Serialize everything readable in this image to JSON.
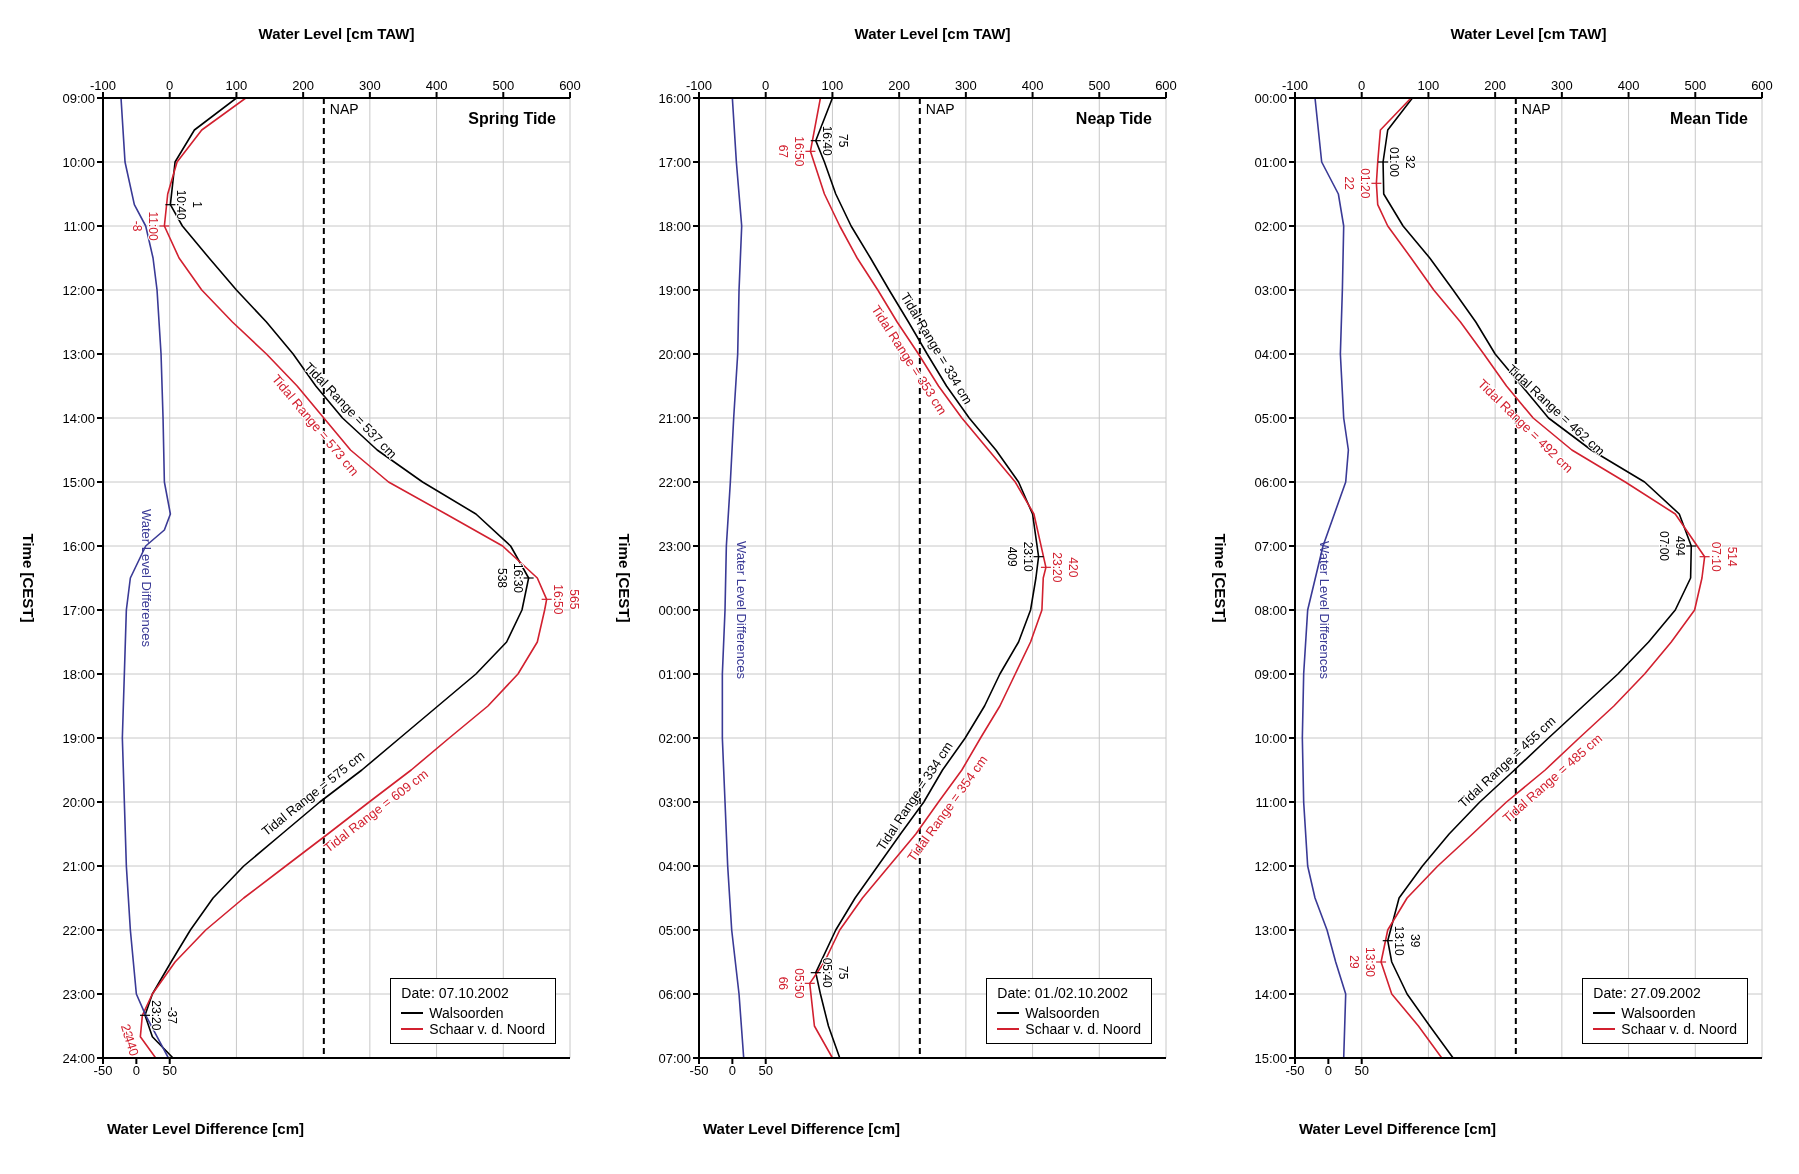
{
  "chart_data": [
    {
      "type": "line",
      "title": "Spring Tide",
      "orientation": "horizontal",
      "xlabel": "Water Level [cm TAW]",
      "ylabel": "Time [CEST]",
      "x2label": "Water Level Difference [cm]",
      "legend_title": "Date: 07.10.2002",
      "legend": "bottom right",
      "grid": true,
      "xlim": [
        -100,
        600
      ],
      "xticks": [
        -100,
        0,
        100,
        200,
        300,
        400,
        500,
        600
      ],
      "x2lim": [
        -50,
        650
      ],
      "x2ticks": [
        -50,
        0,
        50
      ],
      "ylim": [
        24,
        9
      ],
      "yticks": [
        {
          "value": 9,
          "label": "09:00"
        },
        {
          "value": 10,
          "label": "10:00"
        },
        {
          "value": 11,
          "label": "11:00"
        },
        {
          "value": 12,
          "label": "12:00"
        },
        {
          "value": 13,
          "label": "13:00"
        },
        {
          "value": 14,
          "label": "14:00"
        },
        {
          "value": 15,
          "label": "15:00"
        },
        {
          "value": 16,
          "label": "16:00"
        },
        {
          "value": 17,
          "label": "17:00"
        },
        {
          "value": 18,
          "label": "18:00"
        },
        {
          "value": 19,
          "label": "19:00"
        },
        {
          "value": 20,
          "label": "20:00"
        },
        {
          "value": 21,
          "label": "21:00"
        },
        {
          "value": 22,
          "label": "22:00"
        },
        {
          "value": 23,
          "label": "23:00"
        },
        {
          "value": 24,
          "label": "24:00"
        }
      ],
      "series": [
        {
          "name": "Walsoorden",
          "color": "#000000",
          "x": [
            9,
            9.5,
            10,
            10.667,
            11,
            11.5,
            12,
            12.5,
            13,
            13.5,
            14,
            14.5,
            15,
            15.5,
            16,
            16.5,
            17,
            17.5,
            18,
            18.5,
            19,
            19.5,
            20,
            20.5,
            21,
            21.5,
            22,
            22.5,
            23,
            23.333,
            23.667,
            24
          ],
          "values": [
            100,
            37,
            8,
            1,
            19,
            59,
            100,
            145,
            185,
            219,
            259,
            311,
            379,
            459,
            511,
            538,
            528,
            505,
            459,
            402,
            345,
            288,
            225,
            168,
            111,
            65,
            31,
            2,
            -26,
            -37,
            -26,
            5
          ]
        },
        {
          "name": "Schaar v. d. Noord",
          "color": "#d2202f",
          "x": [
            9,
            9.5,
            10,
            10.5,
            11,
            11.5,
            12,
            12.5,
            13,
            13.5,
            14,
            14.5,
            15,
            15.5,
            16,
            16.5,
            16.833,
            17,
            17.5,
            18,
            18.5,
            19,
            19.5,
            20,
            20.5,
            21,
            21.5,
            22,
            22.5,
            23,
            23.333,
            23.667,
            24
          ],
          "values": [
            114,
            48,
            11,
            -3,
            -8,
            14,
            48,
            94,
            145,
            191,
            231,
            271,
            328,
            414,
            499,
            551,
            565,
            562,
            551,
            522,
            477,
            419,
            362,
            299,
            237,
            174,
            111,
            54,
            8,
            -26,
            -41,
            -44,
            -21
          ]
        },
        {
          "name": "Water Level Differences",
          "color": "#3a3a96",
          "axis": "x2",
          "x": [
            9,
            10,
            10.667,
            11,
            11.5,
            12,
            13,
            14,
            15,
            15.5,
            15.75,
            16,
            16.5,
            17,
            18,
            19,
            20,
            21,
            22,
            23,
            23.333,
            23.667,
            24
          ],
          "values": [
            -23,
            -17,
            -3,
            14,
            25,
            31,
            37,
            40,
            42,
            51,
            42,
            14,
            -9,
            -15,
            -18,
            -21,
            -18,
            -15,
            -9,
            0,
            14,
            31,
            48
          ]
        }
      ],
      "ref_lines": [
        {
          "axis": "x",
          "value": 231,
          "label": "NAP",
          "line_style": "dashed"
        }
      ],
      "annotations": [
        {
          "text": "10:40",
          "x": 1,
          "y": 10.667
        },
        {
          "text": "1",
          "x": 1,
          "y": 10.667
        },
        {
          "text": "11:00",
          "x": -8,
          "y": 11
        },
        {
          "text": "-8",
          "x": -8,
          "y": 11
        },
        {
          "text": "16:30",
          "x": 538,
          "y": 16.5
        },
        {
          "text": "538",
          "x": 538,
          "y": 16.5
        },
        {
          "text": "16:50",
          "x": 565,
          "y": 16.833
        },
        {
          "text": "565",
          "x": 565,
          "y": 16.833
        },
        {
          "text": "23:20",
          "x": -37,
          "y": 23.333
        },
        {
          "text": "-37",
          "x": -37,
          "y": 23.333
        },
        {
          "text": "23:40",
          "x": -44,
          "y": 23.667
        },
        {
          "text": "-44",
          "x": -44,
          "y": 23.667
        },
        {
          "text": "Tidal Range = 537 cm",
          "x": 259,
          "y": 14
        },
        {
          "text": "Tidal Range = 573 cm",
          "x": 231,
          "y": 14
        },
        {
          "text": "Tidal Range = 575 cm",
          "x": 225,
          "y": 20
        },
        {
          "text": "Tidal Range = 609 cm",
          "x": 299,
          "y": 20
        }
      ]
    },
    {
      "type": "line",
      "title": "Neap Tide",
      "orientation": "horizontal",
      "xlabel": "Water Level [cm TAW]",
      "ylabel": "Time [CEST]",
      "x2label": "Water Level Difference [cm]",
      "legend_title": "Date: 01./02.10.2002",
      "legend": "bottom right",
      "grid": true,
      "xlim": [
        -100,
        600
      ],
      "xticks": [
        -100,
        0,
        100,
        200,
        300,
        400,
        500,
        600
      ],
      "x2lim": [
        -50,
        650
      ],
      "x2ticks": [
        -50,
        0,
        50
      ],
      "ylim": [
        "2002-10-02T07:00",
        "2002-10-01T16:00"
      ],
      "yticks": [
        {
          "value": "2002-10-01T16:00",
          "label": "16:00"
        },
        {
          "value": "2002-10-01T17:00",
          "label": "17:00"
        },
        {
          "value": "2002-10-01T18:00",
          "label": "18:00"
        },
        {
          "value": "2002-10-01T19:00",
          "label": "19:00"
        },
        {
          "value": "2002-10-01T20:00",
          "label": "20:00"
        },
        {
          "value": "2002-10-01T21:00",
          "label": "21:00"
        },
        {
          "value": "2002-10-01T22:00",
          "label": "22:00"
        },
        {
          "value": "2002-10-01T23:00",
          "label": "23:00"
        },
        {
          "value": "2002-10-02T00:00",
          "label": "00:00"
        },
        {
          "value": "2002-10-02T01:00",
          "label": "01:00"
        },
        {
          "value": "2002-10-02T02:00",
          "label": "02:00"
        },
        {
          "value": "2002-10-02T03:00",
          "label": "03:00"
        },
        {
          "value": "2002-10-02T04:00",
          "label": "04:00"
        },
        {
          "value": "2002-10-02T05:00",
          "label": "05:00"
        },
        {
          "value": "2002-10-02T06:00",
          "label": "06:00"
        },
        {
          "value": "2002-10-02T07:00",
          "label": "07:00"
        }
      ],
      "series": [
        {
          "name": "Walsoorden",
          "color": "#000000",
          "x": [
            "2002-10-01T16:00",
            "2002-10-01T16:40",
            "2002-10-01T17:00",
            "2002-10-01T17:30",
            "2002-10-01T18:00",
            "2002-10-01T18:30",
            "2002-10-01T19:00",
            "2002-10-01T19:30",
            "2002-10-01T20:00",
            "2002-10-01T20:30",
            "2002-10-01T21:00",
            "2002-10-01T21:30",
            "2002-10-01T22:00",
            "2002-10-01T22:30",
            "2002-10-01T23:10",
            "2002-10-01T23:30",
            "2002-10-02T00:00",
            "2002-10-02T00:30",
            "2002-10-02T01:00",
            "2002-10-02T01:30",
            "2002-10-02T02:00",
            "2002-10-02T02:30",
            "2002-10-02T03:00",
            "2002-10-02T03:30",
            "2002-10-02T04:00",
            "2002-10-02T04:30",
            "2002-10-02T05:00",
            "2002-10-02T05:40",
            "2002-10-02T06:00",
            "2002-10-02T06:30",
            "2002-10-02T07:00"
          ],
          "values": [
            100,
            75,
            88,
            105,
            128,
            157,
            185,
            214,
            242,
            271,
            305,
            345,
            379,
            400,
            409,
            405,
            397,
            379,
            351,
            328,
            299,
            265,
            237,
            202,
            168,
            134,
            105,
            75,
            82,
            94,
            111
          ]
        },
        {
          "name": "Schaar v. d. Noord",
          "color": "#d2202f",
          "x": [
            "2002-10-01T16:00",
            "2002-10-01T16:50",
            "2002-10-01T17:30",
            "2002-10-01T18:00",
            "2002-10-01T18:30",
            "2002-10-01T19:00",
            "2002-10-01T19:30",
            "2002-10-01T20:00",
            "2002-10-01T20:30",
            "2002-10-01T21:00",
            "2002-10-01T21:30",
            "2002-10-01T22:00",
            "2002-10-01T22:30",
            "2002-10-01T23:20",
            "2002-10-01T23:30",
            "2002-10-02T00:00",
            "2002-10-02T00:30",
            "2002-10-02T01:00",
            "2002-10-02T01:30",
            "2002-10-02T02:00",
            "2002-10-02T02:30",
            "2002-10-02T03:00",
            "2002-10-02T03:30",
            "2002-10-02T04:00",
            "2002-10-02T04:30",
            "2002-10-02T05:00",
            "2002-10-02T05:30",
            "2002-10-02T05:50",
            "2002-10-02T06:30",
            "2002-10-02T07:00"
          ],
          "values": [
            82,
            67,
            88,
            111,
            137,
            168,
            197,
            229,
            259,
            294,
            334,
            374,
            402,
            420,
            416,
            414,
            397,
            374,
            351,
            322,
            294,
            259,
            225,
            185,
            145,
            111,
            88,
            66,
            73,
            100
          ]
        },
        {
          "name": "Water Level Differences",
          "color": "#3a3a96",
          "axis": "x2",
          "x": [
            "2002-10-01T16:00",
            "2002-10-01T17:00",
            "2002-10-01T18:00",
            "2002-10-01T19:00",
            "2002-10-01T20:00",
            "2002-10-01T21:00",
            "2002-10-01T22:00",
            "2002-10-01T23:00",
            "2002-10-02T00:00",
            "2002-10-02T01:00",
            "2002-10-02T02:00",
            "2002-10-02T03:00",
            "2002-10-02T04:00",
            "2002-10-02T05:00",
            "2002-10-02T06:00",
            "2002-10-02T07:00"
          ],
          "values": [
            0,
            6,
            14,
            10,
            8,
            2,
            -3,
            -9,
            -11,
            -15,
            -15,
            -11,
            -7,
            -1,
            10,
            17
          ]
        }
      ],
      "ref_lines": [
        {
          "axis": "x",
          "value": 231,
          "label": "NAP",
          "line_style": "dashed"
        }
      ],
      "annotations": [
        {
          "text": "16:40",
          "x": 75,
          "y": "2002-10-01T16:40"
        },
        {
          "text": "75",
          "x": 75,
          "y": "2002-10-01T16:40"
        },
        {
          "text": "16:50",
          "x": 67,
          "y": "2002-10-01T16:50"
        },
        {
          "text": "67",
          "x": 67,
          "y": "2002-10-01T16:50"
        },
        {
          "text": "23:10",
          "x": 409,
          "y": "2002-10-01T23:10"
        },
        {
          "text": "409",
          "x": 409,
          "y": "2002-10-01T23:10"
        },
        {
          "text": "23:20",
          "x": 420,
          "y": "2002-10-01T23:20"
        },
        {
          "text": "420",
          "x": 420,
          "y": "2002-10-01T23:20"
        },
        {
          "text": "05:40",
          "x": 75,
          "y": "2002-10-02T05:40"
        },
        {
          "text": "75",
          "x": 75,
          "y": "2002-10-02T05:40"
        },
        {
          "text": "05:50",
          "x": 66,
          "y": "2002-10-02T05:50"
        },
        {
          "text": "66",
          "x": 66,
          "y": "2002-10-02T05:50"
        },
        {
          "text": "Tidal Range = 334 cm",
          "x": 242,
          "y": "2002-10-01T20:00"
        },
        {
          "text": "Tidal Range = 353 cm",
          "x": 229,
          "y": "2002-10-01T20:00"
        },
        {
          "text": "Tidal Range = 334 cm",
          "x": 237,
          "y": "2002-10-02T03:00"
        },
        {
          "text": "Tidal Range = 354 cm",
          "x": 259,
          "y": "2002-10-02T03:00"
        }
      ]
    },
    {
      "type": "line",
      "title": "Mean Tide",
      "orientation": "horizontal",
      "xlabel": "Water Level [cm TAW]",
      "ylabel": "Time [CEST]",
      "x2label": "Water Level Difference [cm]",
      "legend_title": "Date: 27.09.2002",
      "legend": "bottom right",
      "grid": true,
      "xlim": [
        -100,
        600
      ],
      "xticks": [
        -100,
        0,
        100,
        200,
        300,
        400,
        500,
        600
      ],
      "x2lim": [
        -50,
        650
      ],
      "x2ticks": [
        -50,
        0,
        50
      ],
      "ylim": [
        15,
        0
      ],
      "yticks": [
        {
          "value": 0,
          "label": "00:00"
        },
        {
          "value": 1,
          "label": "01:00"
        },
        {
          "value": 2,
          "label": "02:00"
        },
        {
          "value": 3,
          "label": "03:00"
        },
        {
          "value": 4,
          "label": "04:00"
        },
        {
          "value": 5,
          "label": "05:00"
        },
        {
          "value": 6,
          "label": "06:00"
        },
        {
          "value": 7,
          "label": "07:00"
        },
        {
          "value": 8,
          "label": "08:00"
        },
        {
          "value": 9,
          "label": "09:00"
        },
        {
          "value": 10,
          "label": "10:00"
        },
        {
          "value": 11,
          "label": "11:00"
        },
        {
          "value": 12,
          "label": "12:00"
        },
        {
          "value": 13,
          "label": "13:00"
        },
        {
          "value": 14,
          "label": "14:00"
        },
        {
          "value": 15,
          "label": "15:00"
        }
      ],
      "series": [
        {
          "name": "Walsoorden",
          "color": "#000000",
          "x": [
            0,
            0.5,
            1,
            1.5,
            2,
            2.5,
            3,
            3.5,
            4,
            4.5,
            5,
            5.5,
            6,
            6.5,
            7,
            7.5,
            8,
            8.5,
            9,
            9.5,
            10,
            10.5,
            11,
            11.5,
            12,
            12.5,
            13.167,
            13.5,
            14,
            14.5,
            15
          ],
          "values": [
            76,
            39,
            32,
            33,
            62,
            102,
            137,
            171,
            200,
            240,
            280,
            344,
            424,
            476,
            494,
            493,
            470,
            430,
            384,
            332,
            280,
            229,
            177,
            131,
            91,
            56,
            39,
            45,
            68,
            102,
            137
          ]
        },
        {
          "name": "Schaar v. d. Noord",
          "color": "#d2202f",
          "x": [
            0,
            0.5,
            1,
            1.333,
            1.667,
            2,
            2.5,
            3,
            3.5,
            4,
            4.5,
            5,
            5.5,
            6,
            6.5,
            7.167,
            7.5,
            8,
            8.5,
            9,
            9.5,
            10,
            10.5,
            11,
            11.5,
            12,
            12.5,
            13,
            13.5,
            14,
            14.5,
            15
          ],
          "values": [
            74,
            28,
            24,
            22,
            24,
            39,
            74,
            108,
            148,
            183,
            217,
            257,
            315,
            395,
            470,
            514,
            510,
            499,
            464,
            424,
            378,
            326,
            275,
            217,
            166,
            114,
            68,
            39,
            29,
            45,
            85,
            120
          ]
        },
        {
          "name": "Water Level Differences",
          "color": "#3a3a96",
          "axis": "x2",
          "x": [
            0,
            1,
            1.5,
            2,
            3,
            4,
            5,
            5.5,
            6,
            6.5,
            7,
            8,
            9,
            10,
            11,
            12,
            12.5,
            13,
            13.5,
            14,
            15
          ],
          "values": [
            -20,
            -10,
            15,
            23,
            21,
            18,
            23,
            30,
            26,
            9,
            -8,
            -31,
            -37,
            -39,
            -37,
            -31,
            -20,
            -2,
            11,
            26,
            23
          ]
        }
      ],
      "ref_lines": [
        {
          "axis": "x",
          "value": 231,
          "label": "NAP",
          "line_style": "dashed"
        }
      ],
      "annotations": [
        {
          "text": "01:00",
          "x": 32,
          "y": 1
        },
        {
          "text": "32",
          "x": 32,
          "y": 1
        },
        {
          "text": "01:20",
          "x": 22,
          "y": 1.333
        },
        {
          "text": "22",
          "x": 22,
          "y": 1.333
        },
        {
          "text": "494",
          "x": 494,
          "y": 7
        },
        {
          "text": "07:00",
          "x": 494,
          "y": 7
        },
        {
          "text": "07:10",
          "x": 514,
          "y": 7.167
        },
        {
          "text": "514",
          "x": 514,
          "y": 7.167
        },
        {
          "text": "13:10",
          "x": 39,
          "y": 13.167
        },
        {
          "text": "39",
          "x": 39,
          "y": 13.167
        },
        {
          "text": "13:30",
          "x": 29,
          "y": 13.5
        },
        {
          "text": "29",
          "x": 29,
          "y": 13.5
        },
        {
          "text": "Tidal Range = 462 cm",
          "x": 280,
          "y": 5
        },
        {
          "text": "Tidal Range = 492 cm",
          "x": 257,
          "y": 5
        },
        {
          "text": "Tidal Range = 455 cm",
          "x": 229,
          "y": 10.5
        },
        {
          "text": "Tidal Range = 485 cm",
          "x": 275,
          "y": 10.5
        }
      ]
    }
  ]
}
